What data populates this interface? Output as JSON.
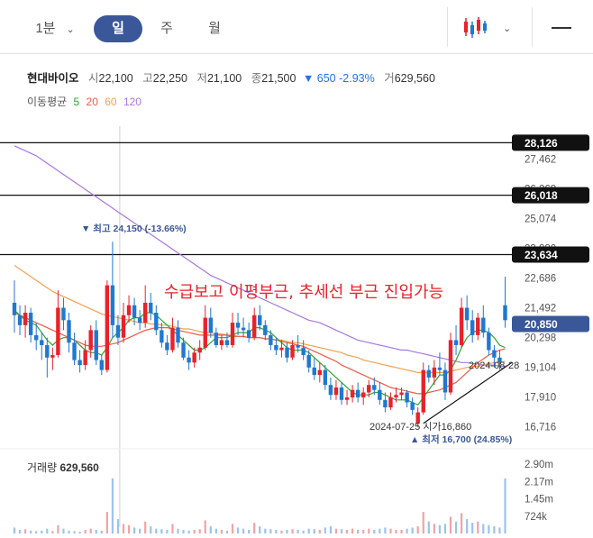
{
  "toolbar": {
    "timeframes": {
      "minute": "1분",
      "day": "일",
      "week": "주",
      "month": "월"
    },
    "active": "day"
  },
  "quote": {
    "name": "현대바이오",
    "open_label": "시",
    "open": "22,100",
    "high_label": "고",
    "high": "22,250",
    "low_label": "저",
    "low": "21,100",
    "close_label": "종",
    "close": "21,500",
    "change": "▼ 650 -2.93%",
    "volume_label": "거",
    "volume": "629,560"
  },
  "ma": {
    "label": "이동평균",
    "items": [
      {
        "period": "5",
        "color": "#2fa52f"
      },
      {
        "period": "20",
        "color": "#ef5a47"
      },
      {
        "period": "60",
        "color": "#f2a150"
      },
      {
        "period": "120",
        "color": "#a878e0"
      }
    ]
  },
  "annotation": "수급보고 이평부근, 추세선 부근 진입가능",
  "highlights": {
    "high": "▼ 최고 24,150 (-13.66%)",
    "low": "▲ 최저 16,700 (24.85%)",
    "point1": "2024-07-25 시가16,860",
    "point2": "2024-08-28"
  },
  "volume_label": "거래량",
  "volume_value": "629,560",
  "colors": {
    "up": "#e8222a",
    "down": "#1f78d1",
    "accent": "#3a5799"
  },
  "chart_data": {
    "type": "candlestick",
    "y_ticks": [
      "27,462",
      "26,268",
      "25,074",
      "23,880",
      "22,686",
      "21,492",
      "20,298",
      "19,104",
      "17,910",
      "16,716"
    ],
    "price_lines": [
      28126,
      26018,
      23634
    ],
    "price_line_labels": [
      "28,126",
      "26,018",
      "23,634"
    ],
    "current": 20850,
    "current_label": "20,850",
    "volume_ticks": [
      "2.90m",
      "2.17m",
      "1.45m",
      "724k"
    ],
    "ohlc": [
      [
        21700,
        22600,
        20500,
        21200
      ],
      [
        21200,
        21600,
        20400,
        20800
      ],
      [
        20800,
        21600,
        20300,
        21300
      ],
      [
        21300,
        21500,
        20100,
        20400
      ],
      [
        20400,
        20900,
        19800,
        20200
      ],
      [
        20200,
        20500,
        19400,
        20000
      ],
      [
        20000,
        20300,
        18700,
        19500
      ],
      [
        19500,
        19900,
        19000,
        19600
      ],
      [
        19600,
        22200,
        19500,
        21500
      ],
      [
        21500,
        21900,
        20600,
        21000
      ],
      [
        21000,
        21300,
        19700,
        20100
      ],
      [
        20100,
        20500,
        19200,
        19400
      ],
      [
        19400,
        19800,
        18900,
        19200
      ],
      [
        19200,
        20200,
        19000,
        19800
      ],
      [
        19800,
        20800,
        19500,
        20600
      ],
      [
        20600,
        21000,
        19200,
        19400
      ],
      [
        19400,
        19600,
        18800,
        19000
      ],
      [
        19000,
        22600,
        18900,
        22400
      ],
      [
        22400,
        24150,
        20300,
        20800
      ],
      [
        20800,
        21200,
        20000,
        20300
      ],
      [
        20300,
        21700,
        20100,
        21200
      ],
      [
        21200,
        22000,
        20900,
        21600
      ],
      [
        21600,
        21900,
        20800,
        21100
      ],
      [
        21100,
        21400,
        20600,
        20900
      ],
      [
        20900,
        22400,
        20700,
        21700
      ],
      [
        21700,
        22100,
        21000,
        21300
      ],
      [
        21300,
        21600,
        20400,
        20600
      ],
      [
        20600,
        20900,
        19900,
        20100
      ],
      [
        20100,
        20400,
        19600,
        19800
      ],
      [
        19800,
        21100,
        19700,
        20700
      ],
      [
        20700,
        21000,
        19900,
        20100
      ],
      [
        20100,
        20300,
        19400,
        19500
      ],
      [
        19500,
        19800,
        19000,
        19300
      ],
      [
        19300,
        19900,
        19100,
        19700
      ],
      [
        19700,
        20200,
        19400,
        19900
      ],
      [
        19900,
        21600,
        19800,
        21100
      ],
      [
        21100,
        21500,
        20300,
        20500
      ],
      [
        20500,
        20700,
        19900,
        20000
      ],
      [
        20000,
        20400,
        19800,
        20200
      ],
      [
        20200,
        20500,
        19900,
        20000
      ],
      [
        20000,
        21300,
        19900,
        20900
      ],
      [
        20900,
        21300,
        20400,
        20700
      ],
      [
        20700,
        21100,
        20300,
        20600
      ],
      [
        20600,
        20900,
        20100,
        20300
      ],
      [
        20300,
        21500,
        20200,
        21200
      ],
      [
        21200,
        21600,
        20600,
        20800
      ],
      [
        20800,
        21000,
        20200,
        20400
      ],
      [
        20400,
        20600,
        19800,
        20000
      ],
      [
        20000,
        20300,
        19600,
        19800
      ],
      [
        19800,
        20200,
        19500,
        19900
      ],
      [
        19900,
        20100,
        19300,
        19500
      ],
      [
        19500,
        20200,
        19400,
        20000
      ],
      [
        20000,
        20400,
        19700,
        19900
      ],
      [
        19900,
        20200,
        19400,
        19600
      ],
      [
        19600,
        19800,
        18900,
        19100
      ],
      [
        19100,
        19500,
        18600,
        18800
      ],
      [
        18800,
        19300,
        18500,
        19000
      ],
      [
        19000,
        19200,
        18200,
        18400
      ],
      [
        18400,
        18700,
        17800,
        18000
      ],
      [
        18000,
        18600,
        17800,
        18300
      ],
      [
        18300,
        18500,
        17600,
        17800
      ],
      [
        17800,
        18200,
        17600,
        17900
      ],
      [
        17900,
        18400,
        17700,
        18200
      ],
      [
        18200,
        18500,
        17700,
        17900
      ],
      [
        17900,
        18300,
        17600,
        18100
      ],
      [
        18100,
        18600,
        17900,
        18400
      ],
      [
        18400,
        18700,
        18000,
        18200
      ],
      [
        18200,
        18500,
        17600,
        17800
      ],
      [
        17800,
        18100,
        17300,
        17500
      ],
      [
        17500,
        18100,
        17400,
        17900
      ],
      [
        17900,
        18300,
        17700,
        18000
      ],
      [
        18000,
        18300,
        17800,
        18100
      ],
      [
        18100,
        18200,
        17500,
        17700
      ],
      [
        17700,
        17900,
        17200,
        17400
      ],
      [
        16860,
        17500,
        16700,
        17300
      ],
      [
        17300,
        19300,
        17200,
        19000
      ],
      [
        19000,
        19200,
        18500,
        18700
      ],
      [
        18700,
        19400,
        18400,
        19100
      ],
      [
        19100,
        19700,
        18800,
        19000
      ],
      [
        19000,
        19300,
        17800,
        18100
      ],
      [
        18100,
        20500,
        18000,
        20200
      ],
      [
        20200,
        20800,
        19600,
        20000
      ],
      [
        20000,
        21900,
        19900,
        21500
      ],
      [
        21500,
        22000,
        20600,
        21000
      ],
      [
        21000,
        21400,
        20100,
        20400
      ],
      [
        20400,
        21300,
        20200,
        21100
      ],
      [
        21100,
        21600,
        20300,
        20500
      ],
      [
        20500,
        20700,
        19600,
        19800
      ],
      [
        19800,
        20000,
        19100,
        19500
      ],
      [
        19500,
        19800,
        19000,
        19300
      ],
      [
        21600,
        22750,
        20700,
        21000
      ]
    ],
    "ma5": [
      21400,
      21200,
      21000,
      20900,
      20800,
      20500,
      20200,
      20000,
      20200,
      20300,
      20300,
      20200,
      20000,
      19800,
      19700,
      19700,
      19600,
      19900,
      20300,
      20500,
      20700,
      21000,
      21100,
      21100,
      21300,
      21300,
      21200,
      21000,
      20800,
      20600,
      20400,
      20200,
      20000,
      19800,
      19800,
      19900,
      20100,
      20300,
      20300,
      20300,
      20400,
      20500,
      20500,
      20500,
      20700,
      20700,
      20600,
      20500,
      20300,
      20100,
      19900,
      19800,
      19800,
      19800,
      19700,
      19500,
      19300,
      19100,
      18900,
      18700,
      18500,
      18300,
      18100,
      18000,
      18000,
      18000,
      18100,
      18100,
      18000,
      17900,
      17800,
      17800,
      17800,
      17700,
      17600,
      17900,
      18200,
      18500,
      18800,
      18800,
      19000,
      19400,
      19900,
      20300,
      20500,
      20600,
      20600,
      20500,
      20300,
      20000,
      19900
    ],
    "ma20": [
      21300,
      21200,
      21100,
      21000,
      20900,
      20800,
      20700,
      20600,
      20500,
      20400,
      20300,
      20200,
      20100,
      20000,
      19950,
      19950,
      19950,
      20000,
      20050,
      20100,
      20200,
      20300,
      20400,
      20500,
      20600,
      20650,
      20700,
      20700,
      20700,
      20650,
      20600,
      20550,
      20500,
      20450,
      20400,
      20400,
      20400,
      20400,
      20400,
      20400,
      20350,
      20350,
      20350,
      20300,
      20300,
      20300,
      20250,
      20250,
      20200,
      20150,
      20100,
      20050,
      20000,
      19950,
      19850,
      19750,
      19650,
      19550,
      19450,
      19350,
      19200,
      19100,
      19000,
      18900,
      18800,
      18700,
      18600,
      18500,
      18400,
      18300,
      18250,
      18200,
      18150,
      18100,
      18050,
      18050,
      18100,
      18150,
      18200,
      18300,
      18400,
      18500,
      18700,
      18900,
      19100,
      19300,
      19450,
      19600,
      19700,
      19800,
      19850
    ],
    "ma60": [
      23200,
      23050,
      22900,
      22750,
      22600,
      22450,
      22300,
      22150,
      22050,
      21950,
      21850,
      21750,
      21650,
      21550,
      21450,
      21350,
      21250,
      21200,
      21150,
      21100,
      21050,
      21000,
      20950,
      20900,
      20900,
      20850,
      20850,
      20800,
      20800,
      20750,
      20700,
      20650,
      20650,
      20600,
      20550,
      20500,
      20500,
      20450,
      20450,
      20400,
      20400,
      20350,
      20350,
      20300,
      20300,
      20300,
      20250,
      20250,
      20200,
      20200,
      20150,
      20100,
      20100,
      20050,
      20000,
      19950,
      19900,
      19850,
      19800,
      19750,
      19700,
      19600,
      19550,
      19500,
      19400,
      19350,
      19300,
      19250,
      19200,
      19150,
      19100,
      19050,
      19000,
      18950,
      18900,
      18900,
      18900,
      18900,
      18900,
      18900,
      18950,
      19000,
      19050,
      19100,
      19150,
      19150,
      19200,
      19250,
      19300,
      19300,
      19350
    ],
    "ma120": [
      28000,
      27900,
      27800,
      27700,
      27600,
      27450,
      27300,
      27150,
      27000,
      26850,
      26700,
      26550,
      26400,
      26250,
      26100,
      25950,
      25800,
      25650,
      25500,
      25350,
      25200,
      25050,
      24900,
      24750,
      24600,
      24450,
      24300,
      24150,
      24000,
      23850,
      23700,
      23550,
      23400,
      23250,
      23100,
      22950,
      22800,
      22700,
      22600,
      22500,
      22400,
      22300,
      22200,
      22100,
      22000,
      21900,
      21800,
      21700,
      21600,
      21500,
      21400,
      21300,
      21200,
      21100,
      21000,
      20950,
      20900,
      20800,
      20700,
      20600,
      20500,
      20400,
      20300,
      20200,
      20150,
      20100,
      20050,
      20000,
      19950,
      19900,
      19850,
      19800,
      19800,
      19750,
      19700,
      19650,
      19600,
      19550,
      19500,
      19450,
      19400,
      19350,
      19300,
      19300,
      19250,
      19250,
      19200,
      19200,
      19200,
      19150,
      19150
    ],
    "volume": [
      0.25,
      0.15,
      0.18,
      0.12,
      0.1,
      0.12,
      0.2,
      0.1,
      0.35,
      0.2,
      0.12,
      0.1,
      0.08,
      0.15,
      0.2,
      0.15,
      0.12,
      0.9,
      2.3,
      0.6,
      0.4,
      0.35,
      0.25,
      0.2,
      0.5,
      0.3,
      0.2,
      0.18,
      0.15,
      0.4,
      0.2,
      0.15,
      0.12,
      0.15,
      0.18,
      0.55,
      0.3,
      0.2,
      0.15,
      0.12,
      0.4,
      0.25,
      0.2,
      0.15,
      0.45,
      0.3,
      0.2,
      0.18,
      0.15,
      0.12,
      0.15,
      0.18,
      0.15,
      0.12,
      0.2,
      0.18,
      0.15,
      0.25,
      0.3,
      0.2,
      0.18,
      0.15,
      0.2,
      0.15,
      0.15,
      0.2,
      0.15,
      0.2,
      0.25,
      0.2,
      0.15,
      0.15,
      0.2,
      0.25,
      0.3,
      0.9,
      0.5,
      0.4,
      0.35,
      0.4,
      0.7,
      0.5,
      0.85,
      0.6,
      0.45,
      0.5,
      0.4,
      0.35,
      0.3,
      0.25,
      2.3
    ]
  }
}
